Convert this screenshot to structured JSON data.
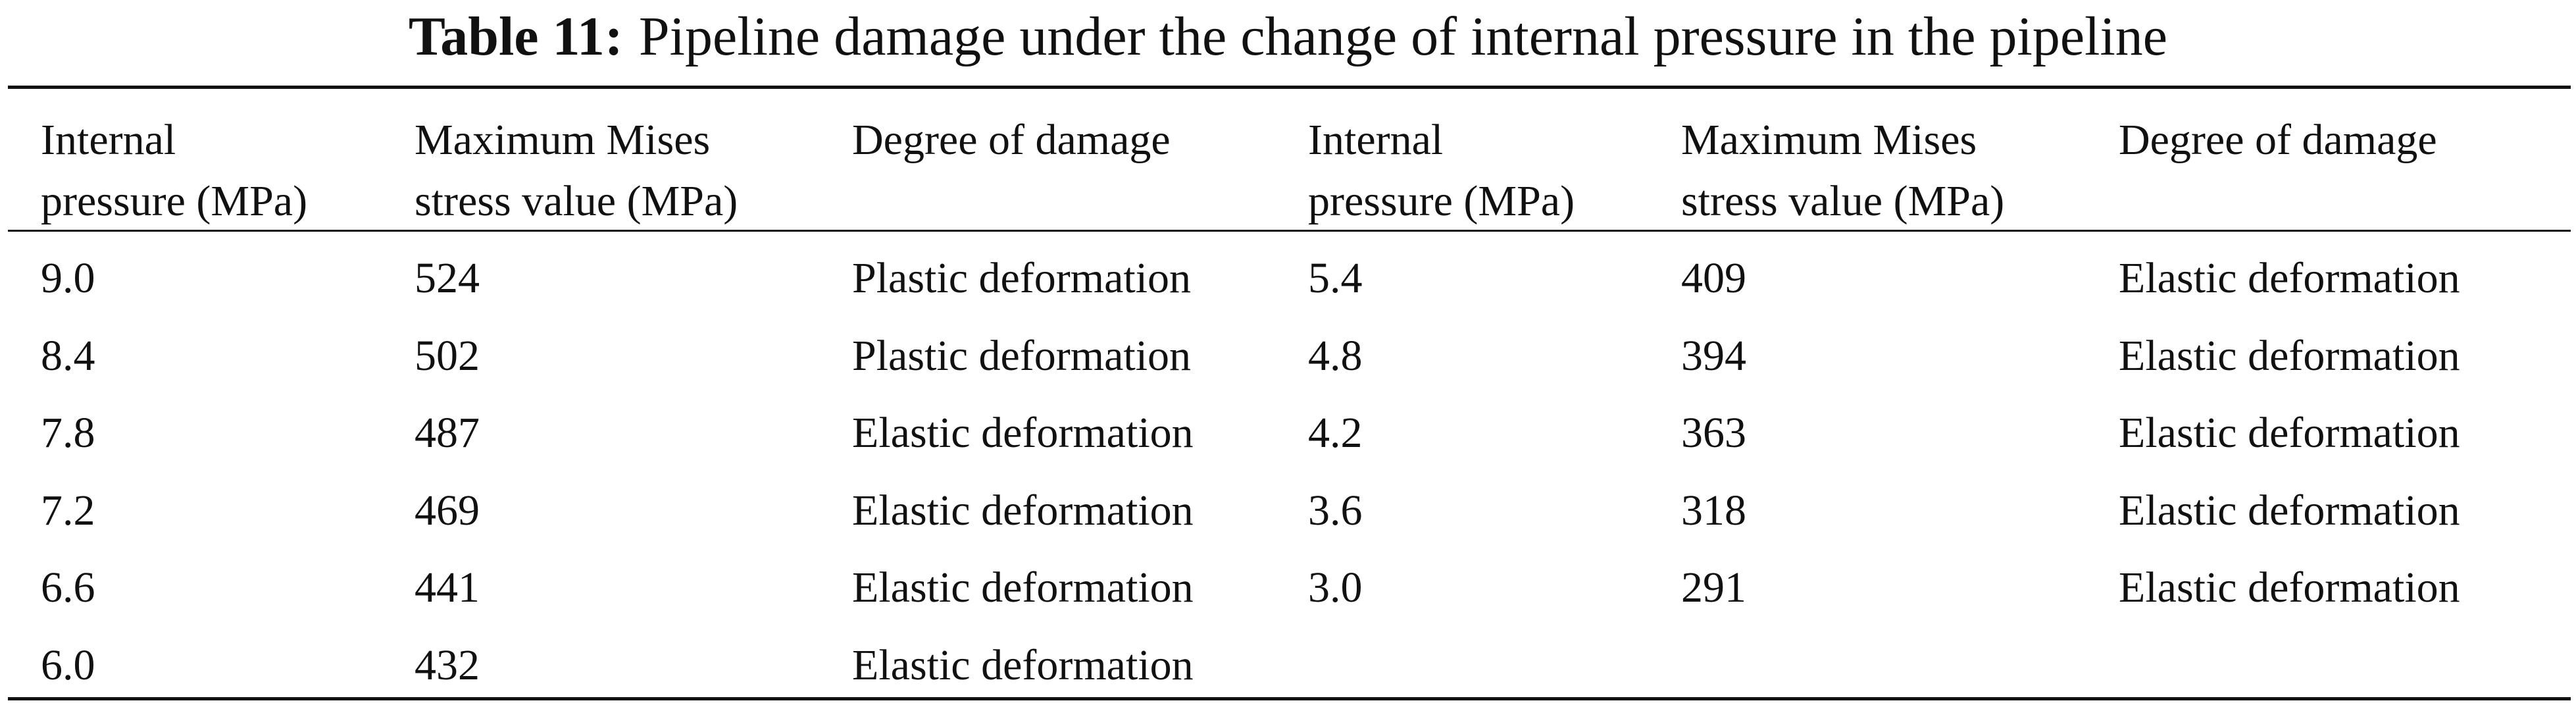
{
  "caption": {
    "label": "Table 11:",
    "text": "Pipeline damage under the change of internal pressure in the pipeline"
  },
  "table": {
    "header": [
      [
        "Internal",
        "pressure (MPa)"
      ],
      [
        "Maximum Mises",
        "stress value (MPa)"
      ],
      [
        "Degree of damage"
      ],
      [
        "Internal",
        "pressure (MPa)"
      ],
      [
        "Maximum Mises",
        "stress value (MPa)"
      ],
      [
        "Degree of damage"
      ]
    ],
    "rows": [
      [
        "9.0",
        "524",
        "Plastic deformation",
        "5.4",
        "409",
        "Elastic deformation"
      ],
      [
        "8.4",
        "502",
        "Plastic deformation",
        "4.8",
        "394",
        "Elastic deformation"
      ],
      [
        "7.8",
        "487",
        "Elastic deformation",
        "4.2",
        "363",
        "Elastic deformation"
      ],
      [
        "7.2",
        "469",
        "Elastic deformation",
        "3.6",
        "318",
        "Elastic deformation"
      ],
      [
        "6.6",
        "441",
        "Elastic deformation",
        "3.0",
        "291",
        "Elastic deformation"
      ],
      [
        "6.0",
        "432",
        "Elastic deformation"
      ]
    ]
  }
}
